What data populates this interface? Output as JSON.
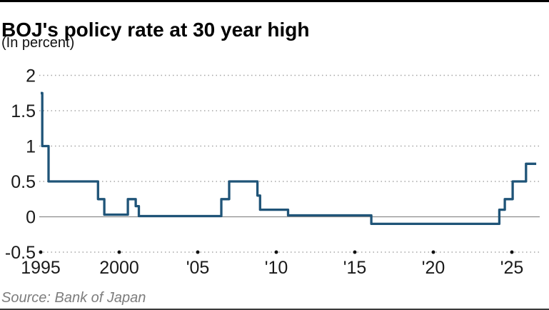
{
  "header": {
    "title": "BOJ's policy rate at 30 year high",
    "subtitle": "(In percent)"
  },
  "source_line": "Source: Bank of Japan",
  "colors": {
    "line": "#1f5478",
    "grid_dots": "#a6a6a6",
    "zero_line": "#8c8c8c",
    "axis_tick_dots": "#111111",
    "text": "#1a1a1a",
    "source_text": "#7d7d7d",
    "top_border": "#000000",
    "bottom_border": "#3b3b3b"
  },
  "chart_data": {
    "type": "line",
    "step": true,
    "title": "BOJ's policy rate at 30 year high",
    "ylabel": "(In percent)",
    "xlabel": "",
    "grid": "dotted horizontal gridlines; solid line at 0; dotted axis line at -0.5 with round tick dots every 5 years",
    "legend": "none",
    "x_range": [
      1995,
      2026.6
    ],
    "ylim": [
      -0.5,
      2
    ],
    "y_ticks": [
      2,
      1.5,
      1,
      0.5,
      0,
      -0.5
    ],
    "x_ticks": [
      {
        "year": 1995,
        "label": "1995"
      },
      {
        "year": 2000,
        "label": "2000"
      },
      {
        "year": 2005,
        "label": "'05"
      },
      {
        "year": 2010,
        "label": "'10"
      },
      {
        "year": 2015,
        "label": "'15"
      },
      {
        "year": 2020,
        "label": "'20"
      },
      {
        "year": 2025,
        "label": "'25"
      }
    ],
    "series": [
      {
        "name": "BOJ policy rate (percent)",
        "interpolation": "step-after",
        "points": [
          [
            1995.0,
            1.75
          ],
          [
            1995.1,
            1.0
          ],
          [
            1995.5,
            0.5
          ],
          [
            1998.65,
            0.25
          ],
          [
            1999.05,
            0.03
          ],
          [
            2000.55,
            0.25
          ],
          [
            2001.05,
            0.15
          ],
          [
            2001.25,
            0.01
          ],
          [
            2006.5,
            0.25
          ],
          [
            2007.0,
            0.5
          ],
          [
            2008.8,
            0.3
          ],
          [
            2008.97,
            0.1
          ],
          [
            2010.75,
            0.02
          ],
          [
            2016.05,
            -0.1
          ],
          [
            2024.2,
            0.1
          ],
          [
            2024.55,
            0.25
          ],
          [
            2025.05,
            0.5
          ],
          [
            2025.9,
            0.75
          ]
        ],
        "end_year": 2026.55
      }
    ]
  }
}
